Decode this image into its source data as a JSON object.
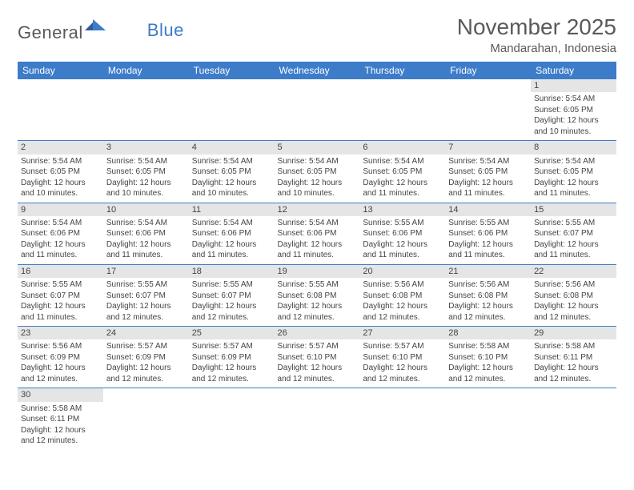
{
  "logo": {
    "part1": "General",
    "part2": "Blue"
  },
  "header": {
    "title": "November 2025",
    "location": "Mandarahan, Indonesia"
  },
  "colors": {
    "header_bg": "#3d7cc9",
    "daynum_bg": "#e5e5e5",
    "border": "#3d7cc9",
    "text": "#444444",
    "title_text": "#5a5a5a"
  },
  "weekdays": [
    "Sunday",
    "Monday",
    "Tuesday",
    "Wednesday",
    "Thursday",
    "Friday",
    "Saturday"
  ],
  "weeks": [
    [
      null,
      null,
      null,
      null,
      null,
      null,
      {
        "n": "1",
        "sr": "Sunrise: 5:54 AM",
        "ss": "Sunset: 6:05 PM",
        "d1": "Daylight: 12 hours",
        "d2": "and 10 minutes."
      }
    ],
    [
      {
        "n": "2",
        "sr": "Sunrise: 5:54 AM",
        "ss": "Sunset: 6:05 PM",
        "d1": "Daylight: 12 hours",
        "d2": "and 10 minutes."
      },
      {
        "n": "3",
        "sr": "Sunrise: 5:54 AM",
        "ss": "Sunset: 6:05 PM",
        "d1": "Daylight: 12 hours",
        "d2": "and 10 minutes."
      },
      {
        "n": "4",
        "sr": "Sunrise: 5:54 AM",
        "ss": "Sunset: 6:05 PM",
        "d1": "Daylight: 12 hours",
        "d2": "and 10 minutes."
      },
      {
        "n": "5",
        "sr": "Sunrise: 5:54 AM",
        "ss": "Sunset: 6:05 PM",
        "d1": "Daylight: 12 hours",
        "d2": "and 10 minutes."
      },
      {
        "n": "6",
        "sr": "Sunrise: 5:54 AM",
        "ss": "Sunset: 6:05 PM",
        "d1": "Daylight: 12 hours",
        "d2": "and 11 minutes."
      },
      {
        "n": "7",
        "sr": "Sunrise: 5:54 AM",
        "ss": "Sunset: 6:05 PM",
        "d1": "Daylight: 12 hours",
        "d2": "and 11 minutes."
      },
      {
        "n": "8",
        "sr": "Sunrise: 5:54 AM",
        "ss": "Sunset: 6:05 PM",
        "d1": "Daylight: 12 hours",
        "d2": "and 11 minutes."
      }
    ],
    [
      {
        "n": "9",
        "sr": "Sunrise: 5:54 AM",
        "ss": "Sunset: 6:06 PM",
        "d1": "Daylight: 12 hours",
        "d2": "and 11 minutes."
      },
      {
        "n": "10",
        "sr": "Sunrise: 5:54 AM",
        "ss": "Sunset: 6:06 PM",
        "d1": "Daylight: 12 hours",
        "d2": "and 11 minutes."
      },
      {
        "n": "11",
        "sr": "Sunrise: 5:54 AM",
        "ss": "Sunset: 6:06 PM",
        "d1": "Daylight: 12 hours",
        "d2": "and 11 minutes."
      },
      {
        "n": "12",
        "sr": "Sunrise: 5:54 AM",
        "ss": "Sunset: 6:06 PM",
        "d1": "Daylight: 12 hours",
        "d2": "and 11 minutes."
      },
      {
        "n": "13",
        "sr": "Sunrise: 5:55 AM",
        "ss": "Sunset: 6:06 PM",
        "d1": "Daylight: 12 hours",
        "d2": "and 11 minutes."
      },
      {
        "n": "14",
        "sr": "Sunrise: 5:55 AM",
        "ss": "Sunset: 6:06 PM",
        "d1": "Daylight: 12 hours",
        "d2": "and 11 minutes."
      },
      {
        "n": "15",
        "sr": "Sunrise: 5:55 AM",
        "ss": "Sunset: 6:07 PM",
        "d1": "Daylight: 12 hours",
        "d2": "and 11 minutes."
      }
    ],
    [
      {
        "n": "16",
        "sr": "Sunrise: 5:55 AM",
        "ss": "Sunset: 6:07 PM",
        "d1": "Daylight: 12 hours",
        "d2": "and 11 minutes."
      },
      {
        "n": "17",
        "sr": "Sunrise: 5:55 AM",
        "ss": "Sunset: 6:07 PM",
        "d1": "Daylight: 12 hours",
        "d2": "and 12 minutes."
      },
      {
        "n": "18",
        "sr": "Sunrise: 5:55 AM",
        "ss": "Sunset: 6:07 PM",
        "d1": "Daylight: 12 hours",
        "d2": "and 12 minutes."
      },
      {
        "n": "19",
        "sr": "Sunrise: 5:55 AM",
        "ss": "Sunset: 6:08 PM",
        "d1": "Daylight: 12 hours",
        "d2": "and 12 minutes."
      },
      {
        "n": "20",
        "sr": "Sunrise: 5:56 AM",
        "ss": "Sunset: 6:08 PM",
        "d1": "Daylight: 12 hours",
        "d2": "and 12 minutes."
      },
      {
        "n": "21",
        "sr": "Sunrise: 5:56 AM",
        "ss": "Sunset: 6:08 PM",
        "d1": "Daylight: 12 hours",
        "d2": "and 12 minutes."
      },
      {
        "n": "22",
        "sr": "Sunrise: 5:56 AM",
        "ss": "Sunset: 6:08 PM",
        "d1": "Daylight: 12 hours",
        "d2": "and 12 minutes."
      }
    ],
    [
      {
        "n": "23",
        "sr": "Sunrise: 5:56 AM",
        "ss": "Sunset: 6:09 PM",
        "d1": "Daylight: 12 hours",
        "d2": "and 12 minutes."
      },
      {
        "n": "24",
        "sr": "Sunrise: 5:57 AM",
        "ss": "Sunset: 6:09 PM",
        "d1": "Daylight: 12 hours",
        "d2": "and 12 minutes."
      },
      {
        "n": "25",
        "sr": "Sunrise: 5:57 AM",
        "ss": "Sunset: 6:09 PM",
        "d1": "Daylight: 12 hours",
        "d2": "and 12 minutes."
      },
      {
        "n": "26",
        "sr": "Sunrise: 5:57 AM",
        "ss": "Sunset: 6:10 PM",
        "d1": "Daylight: 12 hours",
        "d2": "and 12 minutes."
      },
      {
        "n": "27",
        "sr": "Sunrise: 5:57 AM",
        "ss": "Sunset: 6:10 PM",
        "d1": "Daylight: 12 hours",
        "d2": "and 12 minutes."
      },
      {
        "n": "28",
        "sr": "Sunrise: 5:58 AM",
        "ss": "Sunset: 6:10 PM",
        "d1": "Daylight: 12 hours",
        "d2": "and 12 minutes."
      },
      {
        "n": "29",
        "sr": "Sunrise: 5:58 AM",
        "ss": "Sunset: 6:11 PM",
        "d1": "Daylight: 12 hours",
        "d2": "and 12 minutes."
      }
    ],
    [
      {
        "n": "30",
        "sr": "Sunrise: 5:58 AM",
        "ss": "Sunset: 6:11 PM",
        "d1": "Daylight: 12 hours",
        "d2": "and 12 minutes."
      },
      null,
      null,
      null,
      null,
      null,
      null
    ]
  ]
}
